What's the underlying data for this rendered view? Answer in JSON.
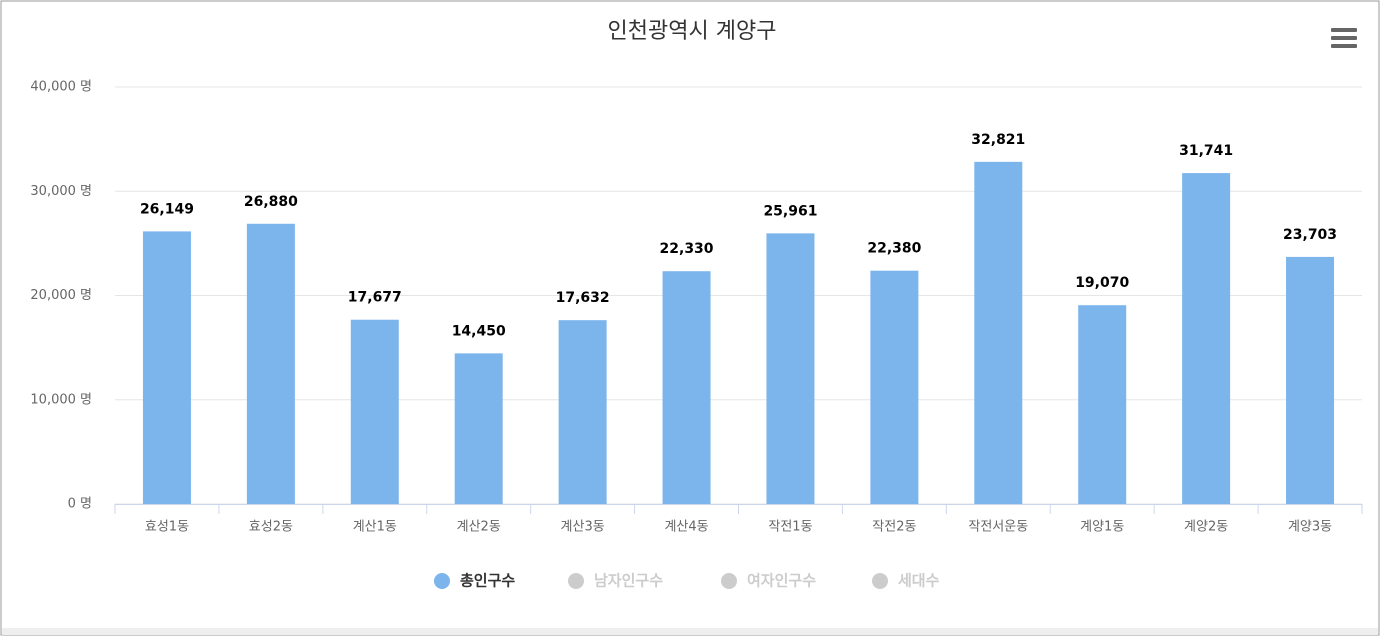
{
  "chart_data": {
    "type": "bar",
    "title": "인천광역시 계양구",
    "categories": [
      "효성1동",
      "효성2동",
      "계산1동",
      "계산2동",
      "계산3동",
      "계산4동",
      "작전1동",
      "작전2동",
      "작전서운동",
      "계양1동",
      "계양2동",
      "계양3동"
    ],
    "series": [
      {
        "name": "총인구수",
        "color": "#7cb5ec",
        "values": [
          26149,
          26880,
          17677,
          14450,
          17632,
          22330,
          25961,
          22380,
          32821,
          19070,
          31741,
          23703
        ],
        "value_labels": [
          "26,149",
          "26,880",
          "17,677",
          "14,450",
          "17,632",
          "22,330",
          "25,961",
          "22,380",
          "32,821",
          "19,070",
          "31,741",
          "23,703"
        ]
      }
    ],
    "hidden_series": [
      {
        "name": "남자인구수",
        "color": "#cccccc"
      },
      {
        "name": "여자인구수",
        "color": "#cccccc"
      },
      {
        "name": "세대수",
        "color": "#cccccc"
      }
    ],
    "ylim": [
      0,
      40000
    ],
    "yticks": [
      {
        "value": 0,
        "label": "0 명"
      },
      {
        "value": 10000,
        "label": "10,000 명"
      },
      {
        "value": 20000,
        "label": "20,000 명"
      },
      {
        "value": 30000,
        "label": "30,000 명"
      },
      {
        "value": 40000,
        "label": "40,000 명"
      }
    ],
    "grid": true
  }
}
